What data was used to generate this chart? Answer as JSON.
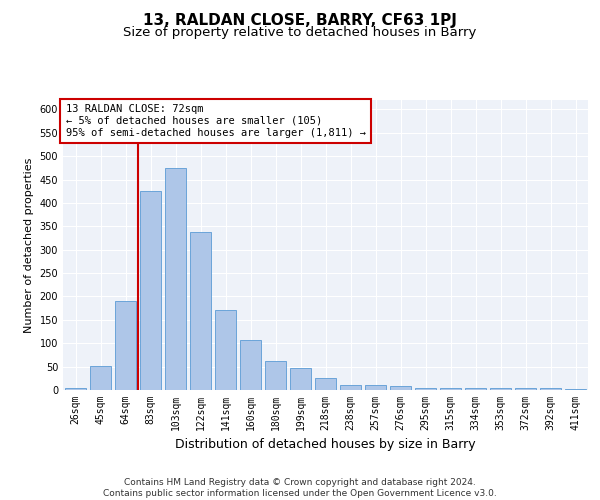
{
  "title": "13, RALDAN CLOSE, BARRY, CF63 1PJ",
  "subtitle": "Size of property relative to detached houses in Barry",
  "xlabel": "Distribution of detached houses by size in Barry",
  "ylabel": "Number of detached properties",
  "categories": [
    "26sqm",
    "45sqm",
    "64sqm",
    "83sqm",
    "103sqm",
    "122sqm",
    "141sqm",
    "160sqm",
    "180sqm",
    "199sqm",
    "218sqm",
    "238sqm",
    "257sqm",
    "276sqm",
    "295sqm",
    "315sqm",
    "334sqm",
    "353sqm",
    "372sqm",
    "392sqm",
    "411sqm"
  ],
  "values": [
    5,
    52,
    190,
    425,
    474,
    337,
    170,
    107,
    62,
    46,
    25,
    11,
    11,
    8,
    5,
    5,
    4,
    4,
    5,
    4,
    3
  ],
  "bar_color": "#aec6e8",
  "bar_edge_color": "#5b9bd5",
  "vline_color": "#cc0000",
  "vline_x": 2.5,
  "annotation_box_text": "13 RALDAN CLOSE: 72sqm\n← 5% of detached houses are smaller (105)\n95% of semi-detached houses are larger (1,811) →",
  "annotation_box_color": "#cc0000",
  "ylim": [
    0,
    620
  ],
  "yticks": [
    0,
    50,
    100,
    150,
    200,
    250,
    300,
    350,
    400,
    450,
    500,
    550,
    600
  ],
  "background_color": "#eef2f9",
  "grid_color": "#ffffff",
  "footer_text": "Contains HM Land Registry data © Crown copyright and database right 2024.\nContains public sector information licensed under the Open Government Licence v3.0.",
  "title_fontsize": 11,
  "subtitle_fontsize": 9.5,
  "xlabel_fontsize": 9,
  "ylabel_fontsize": 8,
  "tick_fontsize": 7,
  "footer_fontsize": 6.5,
  "ann_fontsize": 7.5
}
